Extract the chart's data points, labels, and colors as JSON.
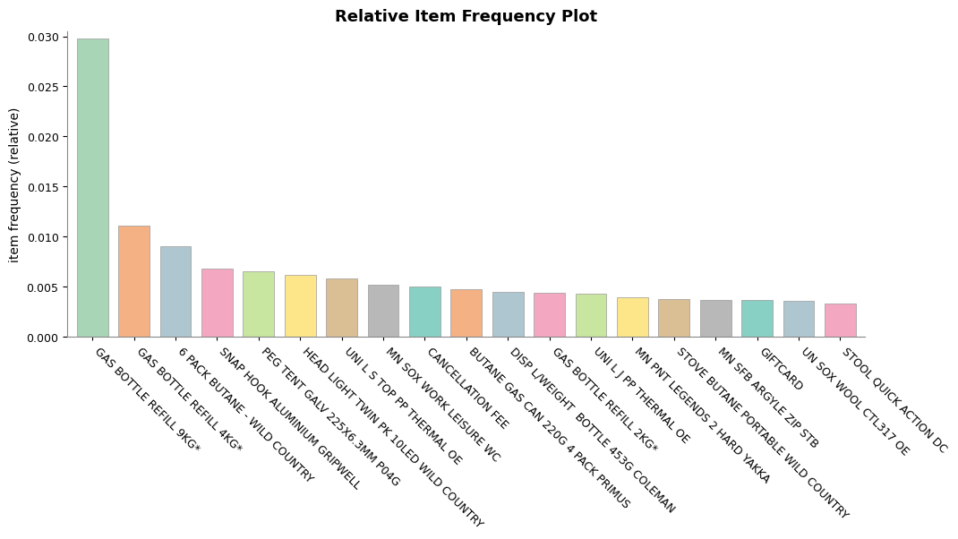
{
  "title": "Relative Item Frequency Plot",
  "ylabel": "item frequency (relative)",
  "categories": [
    "GAS BOTTLE REFILL 9KG*",
    "GAS BOTTLE REFILL 4KG*",
    "6 PACK BUTANE - WILD COUNTRY",
    "SNAP HOOK ALUMINIUM GRIPWELL",
    "PEG TENT GALV 225X6.3MM P04G",
    "HEAD LIGHT TWIN PK 10LED WILD COUNTRY",
    "UNI L S TOP PP THERMAL OE",
    "MN SOX WORK LEISURE WC",
    "CANCELLATION FEE",
    "BUTANE GAS CAN 220G 4 PACK PRIMUS",
    "DISP L/WEIGHT  BOTTLE 453G COLEMAN",
    "GAS BOTTLE REFILL 2KG*",
    "UNI L J PP THERMAL OE",
    "MN PNT LEGENDS 2 HARD YAKKA",
    "STOVE BUTANE PORTABLE WILD COUNTRY",
    "MN SFB ARGYLE ZIP STB",
    "GIFTCARD",
    "UN SOX WOOL CTL317 OE",
    "STOOL QUICK ACTION DC"
  ],
  "values": [
    0.0298,
    0.0111,
    0.0091,
    0.0068,
    0.0066,
    0.0062,
    0.0058,
    0.0052,
    0.005,
    0.0048,
    0.0045,
    0.0044,
    0.0043,
    0.004,
    0.0038,
    0.0037,
    0.0037,
    0.0036,
    0.0033
  ],
  "colors": [
    "#a8d5b5",
    "#f4b183",
    "#aec6cf",
    "#f4a7c0",
    "#c8e6a0",
    "#fde68a",
    "#dbbf94",
    "#b8b8b8",
    "#88cfc4",
    "#f4b183",
    "#aec6cf",
    "#f4a7c0",
    "#c8e6a0",
    "#fde68a",
    "#dbbf94",
    "#b8b8b8",
    "#88cfc4",
    "#aec6cf",
    "#f4a7c0"
  ],
  "ylim": [
    0,
    0.0305
  ],
  "yticks": [
    0.0,
    0.005,
    0.01,
    0.015,
    0.02,
    0.025,
    0.03
  ],
  "background_color": "#ffffff",
  "title_fontsize": 13,
  "axis_label_fontsize": 10,
  "tick_fontsize": 9,
  "bar_edge_color": "#999999",
  "bar_edge_width": 0.5,
  "bar_width": 0.75
}
